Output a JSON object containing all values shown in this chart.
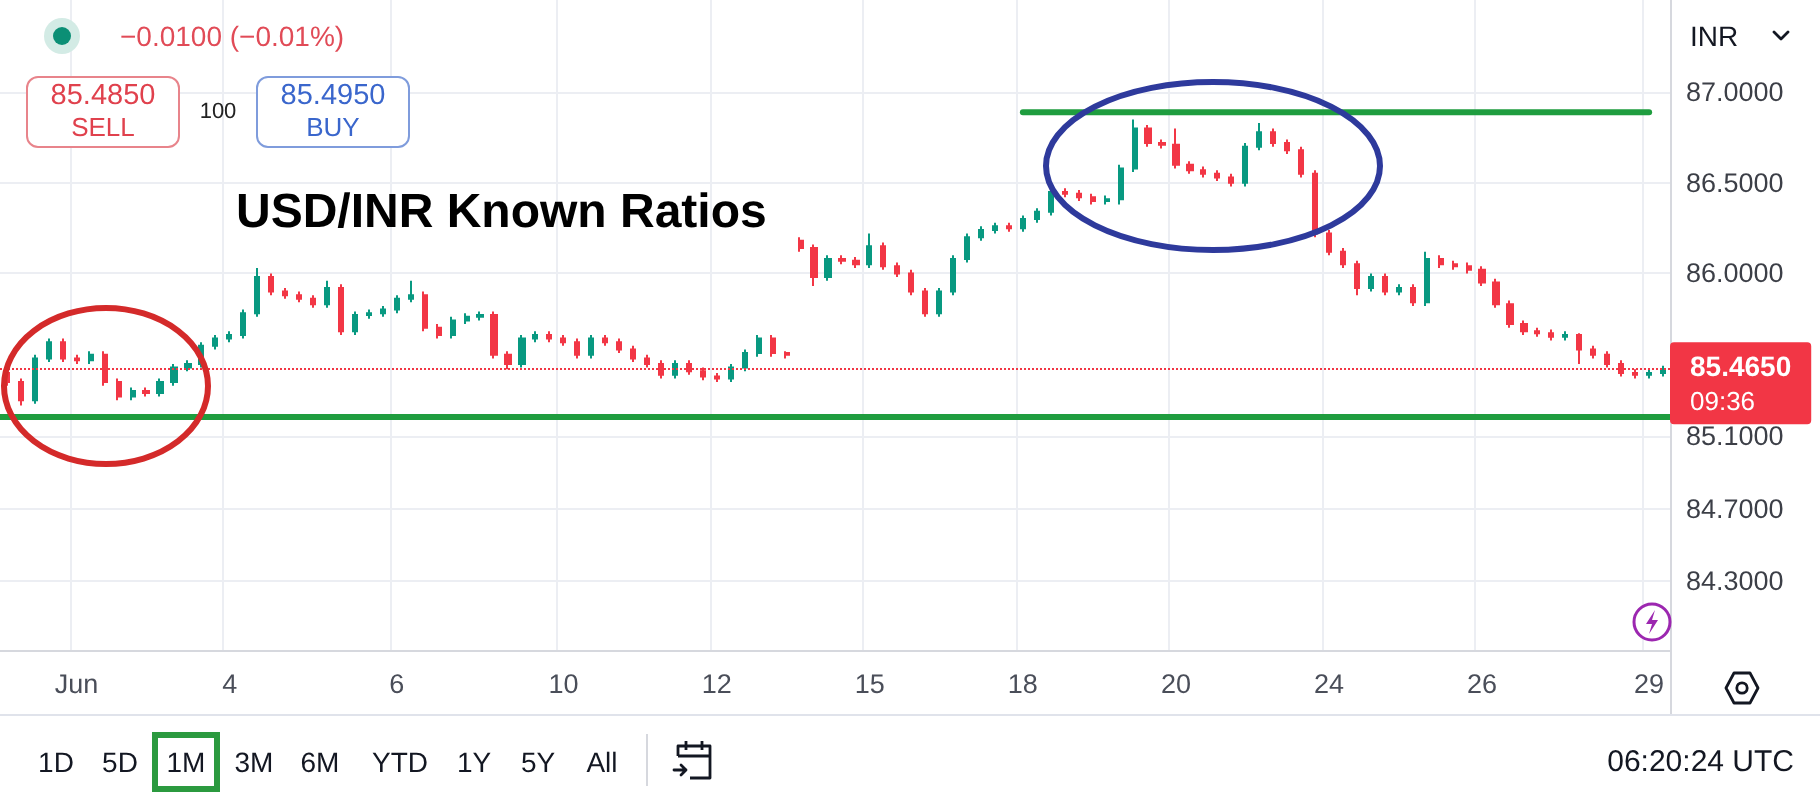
{
  "chart_data": {
    "type": "candlestick",
    "title": "USD/INR Known Ratios",
    "categories": [
      null,
      null,
      null,
      null,
      null,
      "Jun",
      null,
      null,
      null,
      null,
      null,
      null,
      null,
      null,
      null,
      null,
      "4",
      null,
      null,
      null,
      null,
      null,
      null,
      null,
      null,
      null,
      null,
      null,
      "6",
      null,
      null,
      null,
      null,
      null,
      null,
      null,
      null,
      null,
      null,
      null,
      "10",
      null,
      null,
      null,
      null,
      null,
      null,
      null,
      null,
      null,
      null,
      "12",
      null,
      null,
      null,
      null,
      null,
      null,
      null,
      null,
      null,
      null,
      "15",
      null,
      null,
      null,
      null,
      null,
      null,
      null,
      null,
      null,
      null,
      "18",
      null,
      null,
      null,
      null,
      null,
      null,
      null,
      null,
      null,
      null,
      "20",
      null,
      null,
      null,
      null,
      null,
      null,
      null,
      null,
      null,
      null,
      "24",
      null,
      null,
      null,
      null,
      null,
      null,
      null,
      null,
      null,
      null,
      "26",
      null,
      null,
      null,
      null,
      null,
      null,
      null,
      null,
      null,
      null,
      null,
      "29",
      null
    ],
    "ohlc": [
      [
        85.45,
        85.47,
        85.38,
        85.4
      ],
      [
        85.4,
        85.42,
        85.27,
        85.3
      ],
      [
        85.3,
        85.55,
        85.28,
        85.53
      ],
      [
        85.53,
        85.64,
        85.51,
        85.62
      ],
      [
        85.62,
        85.64,
        85.51,
        85.53
      ],
      [
        85.53,
        85.55,
        85.5,
        85.52
      ],
      [
        85.52,
        85.57,
        85.5,
        85.55
      ],
      [
        85.55,
        85.57,
        85.38,
        85.4
      ],
      [
        85.4,
        85.42,
        85.3,
        85.32
      ],
      [
        85.32,
        85.37,
        85.3,
        85.35
      ],
      [
        85.35,
        85.37,
        85.32,
        85.34
      ],
      [
        85.34,
        85.42,
        85.32,
        85.4
      ],
      [
        85.4,
        85.5,
        85.38,
        85.48
      ],
      [
        85.48,
        85.52,
        85.46,
        85.5
      ],
      [
        85.5,
        85.62,
        85.48,
        85.6
      ],
      [
        85.6,
        85.66,
        85.58,
        85.64
      ],
      [
        85.64,
        85.68,
        85.62,
        85.66
      ],
      [
        85.66,
        85.8,
        85.64,
        85.78
      ],
      [
        85.78,
        86.03,
        85.76,
        85.98
      ],
      [
        85.98,
        86.0,
        85.88,
        85.9
      ],
      [
        85.9,
        85.92,
        85.86,
        85.88
      ],
      [
        85.88,
        85.9,
        85.84,
        85.86
      ],
      [
        85.86,
        85.88,
        85.81,
        85.83
      ],
      [
        85.83,
        85.96,
        85.81,
        85.92
      ],
      [
        85.92,
        85.94,
        85.66,
        85.68
      ],
      [
        85.68,
        85.79,
        85.66,
        85.77
      ],
      [
        85.77,
        85.8,
        85.75,
        85.78
      ],
      [
        85.78,
        85.82,
        85.76,
        85.8
      ],
      [
        85.8,
        85.88,
        85.78,
        85.86
      ],
      [
        85.86,
        85.96,
        85.84,
        85.88
      ],
      [
        85.88,
        85.9,
        85.68,
        85.7
      ],
      [
        85.7,
        85.72,
        85.64,
        85.66
      ],
      [
        85.66,
        85.76,
        85.64,
        85.74
      ],
      [
        85.74,
        85.78,
        85.72,
        85.76
      ],
      [
        85.76,
        85.79,
        85.74,
        85.77
      ],
      [
        85.77,
        85.79,
        85.53,
        85.55
      ],
      [
        85.55,
        85.57,
        85.47,
        85.5
      ],
      [
        85.5,
        85.66,
        85.48,
        85.64
      ],
      [
        85.64,
        85.68,
        85.62,
        85.66
      ],
      [
        85.66,
        85.68,
        85.62,
        85.64
      ],
      [
        85.64,
        85.66,
        85.6,
        85.62
      ],
      [
        85.62,
        85.64,
        85.53,
        85.55
      ],
      [
        85.55,
        85.66,
        85.53,
        85.64
      ],
      [
        85.64,
        85.66,
        85.6,
        85.62
      ],
      [
        85.62,
        85.64,
        85.56,
        85.58
      ],
      [
        85.58,
        85.6,
        85.51,
        85.53
      ],
      [
        85.53,
        85.55,
        85.48,
        85.5
      ],
      [
        85.5,
        85.52,
        85.42,
        85.44
      ],
      [
        85.44,
        85.52,
        85.42,
        85.5
      ],
      [
        85.5,
        85.52,
        85.44,
        85.46
      ],
      [
        85.46,
        85.48,
        85.41,
        85.43
      ],
      [
        85.43,
        85.45,
        85.4,
        85.42
      ],
      [
        85.42,
        85.5,
        85.4,
        85.48
      ],
      [
        85.48,
        85.58,
        85.46,
        85.56
      ],
      [
        85.56,
        85.66,
        85.54,
        85.64
      ],
      [
        85.64,
        85.66,
        85.54,
        85.56
      ],
      [
        85.56,
        85.57,
        85.53,
        85.55
      ],
      [
        86.18,
        86.2,
        86.12,
        86.14
      ],
      [
        86.14,
        86.16,
        85.93,
        85.98
      ],
      [
        85.98,
        86.1,
        85.96,
        86.08
      ],
      [
        86.08,
        86.1,
        86.05,
        86.07
      ],
      [
        86.07,
        86.09,
        86.03,
        86.05
      ],
      [
        86.05,
        86.22,
        86.03,
        86.15
      ],
      [
        86.15,
        86.17,
        86.02,
        86.04
      ],
      [
        86.04,
        86.06,
        85.98,
        86.0
      ],
      [
        86.0,
        86.02,
        85.88,
        85.9
      ],
      [
        85.9,
        85.92,
        85.76,
        85.78
      ],
      [
        85.78,
        85.92,
        85.76,
        85.9
      ],
      [
        85.9,
        86.1,
        85.88,
        86.08
      ],
      [
        86.08,
        86.22,
        86.06,
        86.2
      ],
      [
        86.2,
        86.26,
        86.18,
        86.24
      ],
      [
        86.24,
        86.28,
        86.22,
        86.26
      ],
      [
        86.26,
        86.28,
        86.23,
        86.25
      ],
      [
        86.25,
        86.32,
        86.23,
        86.3
      ],
      [
        86.3,
        86.36,
        86.28,
        86.34
      ],
      [
        86.34,
        86.47,
        86.32,
        86.45
      ],
      [
        86.45,
        86.47,
        86.42,
        86.44
      ],
      [
        86.44,
        86.46,
        86.4,
        86.42
      ],
      [
        86.42,
        86.44,
        86.38,
        86.4
      ],
      [
        86.4,
        86.43,
        86.38,
        86.41
      ],
      [
        86.41,
        86.6,
        86.38,
        86.58
      ],
      [
        86.58,
        86.85,
        86.56,
        86.8
      ],
      [
        86.8,
        86.82,
        86.7,
        86.72
      ],
      [
        86.72,
        86.74,
        86.69,
        86.71
      ],
      [
        86.71,
        86.8,
        86.58,
        86.6
      ],
      [
        86.6,
        86.62,
        86.55,
        86.57
      ],
      [
        86.57,
        86.59,
        86.53,
        86.55
      ],
      [
        86.55,
        86.57,
        86.51,
        86.53
      ],
      [
        86.53,
        86.55,
        86.48,
        86.5
      ],
      [
        86.5,
        86.72,
        86.48,
        86.7
      ],
      [
        86.7,
        86.83,
        86.68,
        86.78
      ],
      [
        86.78,
        86.8,
        86.7,
        86.72
      ],
      [
        86.72,
        86.74,
        86.66,
        86.68
      ],
      [
        86.68,
        86.7,
        86.53,
        86.55
      ],
      [
        86.55,
        86.57,
        86.2,
        86.22
      ],
      [
        86.22,
        86.24,
        86.1,
        86.12
      ],
      [
        86.12,
        86.14,
        86.03,
        86.05
      ],
      [
        86.05,
        86.07,
        85.88,
        85.92
      ],
      [
        85.92,
        86.0,
        85.9,
        85.98
      ],
      [
        85.98,
        86.0,
        85.88,
        85.9
      ],
      [
        85.9,
        85.94,
        85.88,
        85.92
      ],
      [
        85.92,
        85.94,
        85.82,
        85.84
      ],
      [
        85.84,
        86.12,
        85.82,
        86.08
      ],
      [
        86.08,
        86.1,
        86.03,
        86.05
      ],
      [
        86.05,
        86.07,
        86.02,
        86.04
      ],
      [
        86.04,
        86.06,
        86.0,
        86.02
      ],
      [
        86.02,
        86.04,
        85.93,
        85.95
      ],
      [
        85.95,
        85.97,
        85.81,
        85.83
      ],
      [
        85.83,
        85.85,
        85.7,
        85.72
      ],
      [
        85.72,
        85.74,
        85.66,
        85.68
      ],
      [
        85.68,
        85.7,
        85.65,
        85.67
      ],
      [
        85.67,
        85.69,
        85.63,
        85.65
      ],
      [
        85.65,
        85.68,
        85.63,
        85.66
      ],
      [
        85.66,
        85.67,
        85.5,
        85.58
      ],
      [
        85.58,
        85.6,
        85.53,
        85.55
      ],
      [
        85.55,
        85.57,
        85.48,
        85.5
      ],
      [
        85.5,
        85.52,
        85.43,
        85.45
      ],
      [
        85.45,
        85.47,
        85.42,
        85.44
      ],
      [
        85.44,
        85.47,
        85.42,
        85.45
      ],
      [
        85.45,
        85.49,
        85.43,
        85.465
      ]
    ],
    "colors": [
      "#f23645",
      "#f23645",
      "#089981",
      "#089981",
      "#f23645",
      "#f23645",
      "#089981",
      "#f23645",
      "#f23645",
      "#089981",
      "#f23645",
      "#089981",
      "#089981",
      "#089981",
      "#089981",
      "#089981",
      "#089981",
      "#089981",
      "#089981",
      "#f23645",
      "#f23645",
      "#f23645",
      "#f23645",
      "#089981",
      "#f23645",
      "#089981",
      "#089981",
      "#089981",
      "#089981",
      "#089981",
      "#f23645",
      "#f23645",
      "#089981",
      "#089981",
      "#089981",
      "#f23645",
      "#f23645",
      "#089981",
      "#089981",
      "#f23645",
      "#f23645",
      "#f23645",
      "#089981",
      "#f23645",
      "#f23645",
      "#f23645",
      "#f23645",
      "#f23645",
      "#089981",
      "#f23645",
      "#f23645",
      "#f23645",
      "#089981",
      "#089981",
      "#089981",
      "#f23645",
      "#f23645",
      "#f23645",
      "#f23645",
      "#089981",
      "#f23645",
      "#f23645",
      "#089981",
      "#f23645",
      "#f23645",
      "#f23645",
      "#f23645",
      "#089981",
      "#089981",
      "#089981",
      "#089981",
      "#089981",
      "#f23645",
      "#089981",
      "#089981",
      "#089981",
      "#f23645",
      "#f23645",
      "#f23645",
      "#089981",
      "#089981",
      "#089981",
      "#f23645",
      "#f23645",
      "#f23645",
      "#f23645",
      "#f23645",
      "#f23645",
      "#f23645",
      "#089981",
      "#089981",
      "#f23645",
      "#f23645",
      "#f23645",
      "#f23645",
      "#f23645",
      "#f23645",
      "#f23645",
      "#089981",
      "#f23645",
      "#089981",
      "#f23645",
      "#089981",
      "#f23645",
      "#f23645",
      "#f23645",
      "#f23645",
      "#f23645",
      "#f23645",
      "#f23645",
      "#f23645",
      "#f23645",
      "#089981",
      "#f23645",
      "#f23645",
      "#f23645",
      "#f23645",
      "#f23645",
      "#089981",
      "#089981"
    ],
    "ylim": [
      83.92,
      87.51
    ],
    "yticks": [
      {
        "value": 87,
        "label": "87.0000"
      },
      {
        "value": 86.5,
        "label": "86.5000"
      },
      {
        "value": 86,
        "label": "86.0000"
      },
      {
        "value": 85.1,
        "label": "85.1000"
      },
      {
        "value": 84.7,
        "label": "84.7000"
      },
      {
        "value": 84.3,
        "label": "84.3000"
      }
    ],
    "grid": true,
    "series": [
      {
        "type": "line",
        "x": [
          "18",
          "29"
        ],
        "values": [
          86.89,
          86.89
        ],
        "color": "#1f9d3f"
      }
    ],
    "ref_lines": [
      {
        "axis": "y",
        "value": 85.21,
        "color": "#1f9d3f"
      },
      {
        "axis": "y",
        "value": 85.465,
        "label": "85.4650",
        "color": "#f23645",
        "line_style": "dotted"
      }
    ],
    "annotations": [
      "−0.0100 (−0.01%)",
      "85.4850",
      "SELL",
      "100",
      "85.4950",
      "BUY",
      "09:36",
      "INR",
      "1D",
      "5D",
      "1M",
      "3M",
      "6M",
      "YTD",
      "1Y",
      "5Y",
      "All",
      "06:20:24 UTC"
    ]
  }
}
